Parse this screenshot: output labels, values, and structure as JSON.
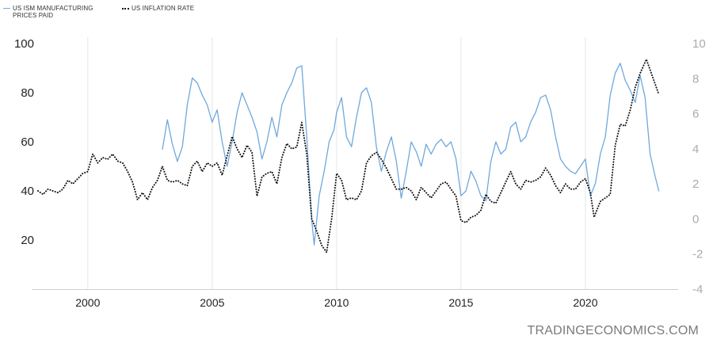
{
  "legend": {
    "items": [
      {
        "label": "US ISM MANUFACTURING PRICES PAID",
        "color": "#6fa8dc",
        "style": "solid"
      },
      {
        "label": "US INFLATION RATE",
        "color": "#111111",
        "style": "dotted"
      }
    ]
  },
  "watermark": "TRADINGECONOMICS.COM",
  "chart_data": {
    "type": "line",
    "title": "",
    "xlabel": "",
    "ylabel": "",
    "xlim": [
      1998.0,
      2023.6
    ],
    "x_ticks": [
      {
        "value": 2000,
        "label": "2000"
      },
      {
        "value": 2005,
        "label": "2005"
      },
      {
        "value": 2010,
        "label": "2010"
      },
      {
        "value": 2015,
        "label": "2015"
      },
      {
        "value": 2020,
        "label": "2020"
      }
    ],
    "y_left": {
      "range": [
        0,
        100
      ],
      "ticks": [
        0,
        20,
        40,
        60,
        80,
        100
      ],
      "labels": [
        "",
        "20",
        "40",
        "60",
        "80",
        "100"
      ]
    },
    "y_right": {
      "range": [
        -4,
        10
      ],
      "ticks": [
        -4,
        -2,
        0,
        2,
        4,
        6,
        8,
        10
      ],
      "labels": [
        "-4",
        "-2",
        "0",
        "2",
        "4",
        "6",
        "8",
        "10"
      ]
    },
    "grid": {
      "x": true,
      "y": false
    },
    "legend_position": "top-left",
    "series": [
      {
        "name": "US ISM MANUFACTURING PRICES PAID",
        "axis": "left",
        "color": "#6fa8dc",
        "dash": "solid",
        "points": [
          [
            2003.0,
            57
          ],
          [
            2003.2,
            69
          ],
          [
            2003.4,
            59
          ],
          [
            2003.6,
            52
          ],
          [
            2003.8,
            58
          ],
          [
            2004.0,
            75
          ],
          [
            2004.2,
            86
          ],
          [
            2004.4,
            84
          ],
          [
            2004.6,
            79
          ],
          [
            2004.8,
            75
          ],
          [
            2005.0,
            68
          ],
          [
            2005.2,
            73
          ],
          [
            2005.4,
            60
          ],
          [
            2005.6,
            50
          ],
          [
            2005.8,
            60
          ],
          [
            2006.0,
            72
          ],
          [
            2006.2,
            80
          ],
          [
            2006.4,
            75
          ],
          [
            2006.6,
            70
          ],
          [
            2006.8,
            64
          ],
          [
            2007.0,
            53
          ],
          [
            2007.2,
            60
          ],
          [
            2007.4,
            70
          ],
          [
            2007.6,
            62
          ],
          [
            2007.8,
            75
          ],
          [
            2008.0,
            80
          ],
          [
            2008.2,
            84
          ],
          [
            2008.4,
            90
          ],
          [
            2008.6,
            91
          ],
          [
            2008.8,
            62
          ],
          [
            2009.0,
            28
          ],
          [
            2009.1,
            18
          ],
          [
            2009.3,
            38
          ],
          [
            2009.5,
            48
          ],
          [
            2009.7,
            60
          ],
          [
            2009.9,
            65
          ],
          [
            2010.0,
            72
          ],
          [
            2010.2,
            78
          ],
          [
            2010.4,
            62
          ],
          [
            2010.6,
            58
          ],
          [
            2010.8,
            70
          ],
          [
            2011.0,
            80
          ],
          [
            2011.2,
            82
          ],
          [
            2011.4,
            76
          ],
          [
            2011.6,
            58
          ],
          [
            2011.8,
            48
          ],
          [
            2012.0,
            56
          ],
          [
            2012.2,
            62
          ],
          [
            2012.4,
            52
          ],
          [
            2012.6,
            37
          ],
          [
            2012.8,
            48
          ],
          [
            2013.0,
            60
          ],
          [
            2013.2,
            56
          ],
          [
            2013.4,
            50
          ],
          [
            2013.6,
            59
          ],
          [
            2013.8,
            55
          ],
          [
            2014.0,
            59
          ],
          [
            2014.2,
            61
          ],
          [
            2014.4,
            58
          ],
          [
            2014.6,
            60
          ],
          [
            2014.8,
            53
          ],
          [
            2015.0,
            38
          ],
          [
            2015.2,
            40
          ],
          [
            2015.4,
            48
          ],
          [
            2015.6,
            44
          ],
          [
            2015.8,
            38
          ],
          [
            2016.0,
            36
          ],
          [
            2016.2,
            52
          ],
          [
            2016.4,
            60
          ],
          [
            2016.6,
            55
          ],
          [
            2016.8,
            57
          ],
          [
            2017.0,
            66
          ],
          [
            2017.2,
            68
          ],
          [
            2017.4,
            60
          ],
          [
            2017.6,
            62
          ],
          [
            2017.8,
            68
          ],
          [
            2018.0,
            72
          ],
          [
            2018.2,
            78
          ],
          [
            2018.4,
            79
          ],
          [
            2018.6,
            73
          ],
          [
            2018.8,
            62
          ],
          [
            2019.0,
            53
          ],
          [
            2019.2,
            50
          ],
          [
            2019.4,
            48
          ],
          [
            2019.6,
            47
          ],
          [
            2019.8,
            50
          ],
          [
            2020.0,
            53
          ],
          [
            2020.2,
            38
          ],
          [
            2020.4,
            43
          ],
          [
            2020.6,
            55
          ],
          [
            2020.8,
            62
          ],
          [
            2021.0,
            79
          ],
          [
            2021.2,
            88
          ],
          [
            2021.4,
            92
          ],
          [
            2021.6,
            85
          ],
          [
            2021.8,
            81
          ],
          [
            2022.0,
            76
          ],
          [
            2022.2,
            87
          ],
          [
            2022.4,
            78
          ],
          [
            2022.6,
            55
          ],
          [
            2022.8,
            46
          ],
          [
            2022.95,
            40
          ]
        ]
      },
      {
        "name": "US INFLATION RATE",
        "axis": "right",
        "color": "#111111",
        "dash": "dotted",
        "points": [
          [
            1998.0,
            1.6
          ],
          [
            1998.2,
            1.4
          ],
          [
            1998.4,
            1.7
          ],
          [
            1998.6,
            1.6
          ],
          [
            1998.8,
            1.5
          ],
          [
            1999.0,
            1.7
          ],
          [
            1999.2,
            2.2
          ],
          [
            1999.4,
            2.0
          ],
          [
            1999.6,
            2.3
          ],
          [
            1999.8,
            2.6
          ],
          [
            2000.0,
            2.7
          ],
          [
            2000.2,
            3.7
          ],
          [
            2000.4,
            3.2
          ],
          [
            2000.6,
            3.5
          ],
          [
            2000.8,
            3.4
          ],
          [
            2001.0,
            3.7
          ],
          [
            2001.2,
            3.3
          ],
          [
            2001.4,
            3.2
          ],
          [
            2001.6,
            2.7
          ],
          [
            2001.8,
            2.1
          ],
          [
            2002.0,
            1.1
          ],
          [
            2002.2,
            1.5
          ],
          [
            2002.4,
            1.1
          ],
          [
            2002.6,
            1.8
          ],
          [
            2002.8,
            2.2
          ],
          [
            2003.0,
            3.0
          ],
          [
            2003.2,
            2.2
          ],
          [
            2003.4,
            2.1
          ],
          [
            2003.6,
            2.2
          ],
          [
            2003.8,
            2.0
          ],
          [
            2004.0,
            1.9
          ],
          [
            2004.2,
            3.0
          ],
          [
            2004.4,
            3.3
          ],
          [
            2004.6,
            2.7
          ],
          [
            2004.8,
            3.2
          ],
          [
            2005.0,
            3.0
          ],
          [
            2005.2,
            3.2
          ],
          [
            2005.4,
            2.5
          ],
          [
            2005.6,
            3.6
          ],
          [
            2005.8,
            4.7
          ],
          [
            2006.0,
            4.0
          ],
          [
            2006.2,
            3.5
          ],
          [
            2006.4,
            4.2
          ],
          [
            2006.6,
            3.8
          ],
          [
            2006.8,
            1.3
          ],
          [
            2007.0,
            2.4
          ],
          [
            2007.2,
            2.6
          ],
          [
            2007.4,
            2.7
          ],
          [
            2007.6,
            2.0
          ],
          [
            2007.8,
            3.5
          ],
          [
            2008.0,
            4.3
          ],
          [
            2008.2,
            4.0
          ],
          [
            2008.4,
            4.1
          ],
          [
            2008.6,
            5.5
          ],
          [
            2008.8,
            3.7
          ],
          [
            2009.0,
            0.0
          ],
          [
            2009.2,
            -0.7
          ],
          [
            2009.4,
            -1.5
          ],
          [
            2009.6,
            -1.9
          ],
          [
            2009.8,
            0.0
          ],
          [
            2010.0,
            2.6
          ],
          [
            2010.2,
            2.2
          ],
          [
            2010.4,
            1.1
          ],
          [
            2010.6,
            1.2
          ],
          [
            2010.8,
            1.1
          ],
          [
            2011.0,
            1.6
          ],
          [
            2011.2,
            3.2
          ],
          [
            2011.4,
            3.6
          ],
          [
            2011.6,
            3.8
          ],
          [
            2011.8,
            3.4
          ],
          [
            2012.0,
            2.9
          ],
          [
            2012.2,
            2.3
          ],
          [
            2012.4,
            1.7
          ],
          [
            2012.6,
            1.7
          ],
          [
            2012.8,
            1.8
          ],
          [
            2013.0,
            1.6
          ],
          [
            2013.2,
            1.1
          ],
          [
            2013.4,
            1.8
          ],
          [
            2013.6,
            1.5
          ],
          [
            2013.8,
            1.2
          ],
          [
            2014.0,
            1.6
          ],
          [
            2014.2,
            2.0
          ],
          [
            2014.4,
            2.1
          ],
          [
            2014.6,
            1.7
          ],
          [
            2014.8,
            1.3
          ],
          [
            2015.0,
            -0.1
          ],
          [
            2015.2,
            -0.2
          ],
          [
            2015.4,
            0.1
          ],
          [
            2015.6,
            0.2
          ],
          [
            2015.8,
            0.5
          ],
          [
            2016.0,
            1.4
          ],
          [
            2016.2,
            1.0
          ],
          [
            2016.4,
            0.9
          ],
          [
            2016.6,
            1.5
          ],
          [
            2016.8,
            2.1
          ],
          [
            2017.0,
            2.7
          ],
          [
            2017.2,
            2.0
          ],
          [
            2017.4,
            1.7
          ],
          [
            2017.6,
            2.2
          ],
          [
            2017.8,
            2.1
          ],
          [
            2018.0,
            2.2
          ],
          [
            2018.2,
            2.4
          ],
          [
            2018.4,
            2.9
          ],
          [
            2018.6,
            2.5
          ],
          [
            2018.8,
            1.9
          ],
          [
            2019.0,
            1.5
          ],
          [
            2019.2,
            2.0
          ],
          [
            2019.4,
            1.7
          ],
          [
            2019.6,
            1.7
          ],
          [
            2019.8,
            2.1
          ],
          [
            2020.0,
            2.3
          ],
          [
            2020.2,
            1.5
          ],
          [
            2020.35,
            0.1
          ],
          [
            2020.6,
            1.0
          ],
          [
            2020.8,
            1.2
          ],
          [
            2021.0,
            1.4
          ],
          [
            2021.2,
            4.2
          ],
          [
            2021.4,
            5.4
          ],
          [
            2021.6,
            5.3
          ],
          [
            2021.8,
            6.2
          ],
          [
            2022.0,
            7.5
          ],
          [
            2022.2,
            8.3
          ],
          [
            2022.45,
            9.1
          ],
          [
            2022.6,
            8.5
          ],
          [
            2022.8,
            7.7
          ],
          [
            2022.95,
            7.1
          ]
        ]
      }
    ]
  }
}
